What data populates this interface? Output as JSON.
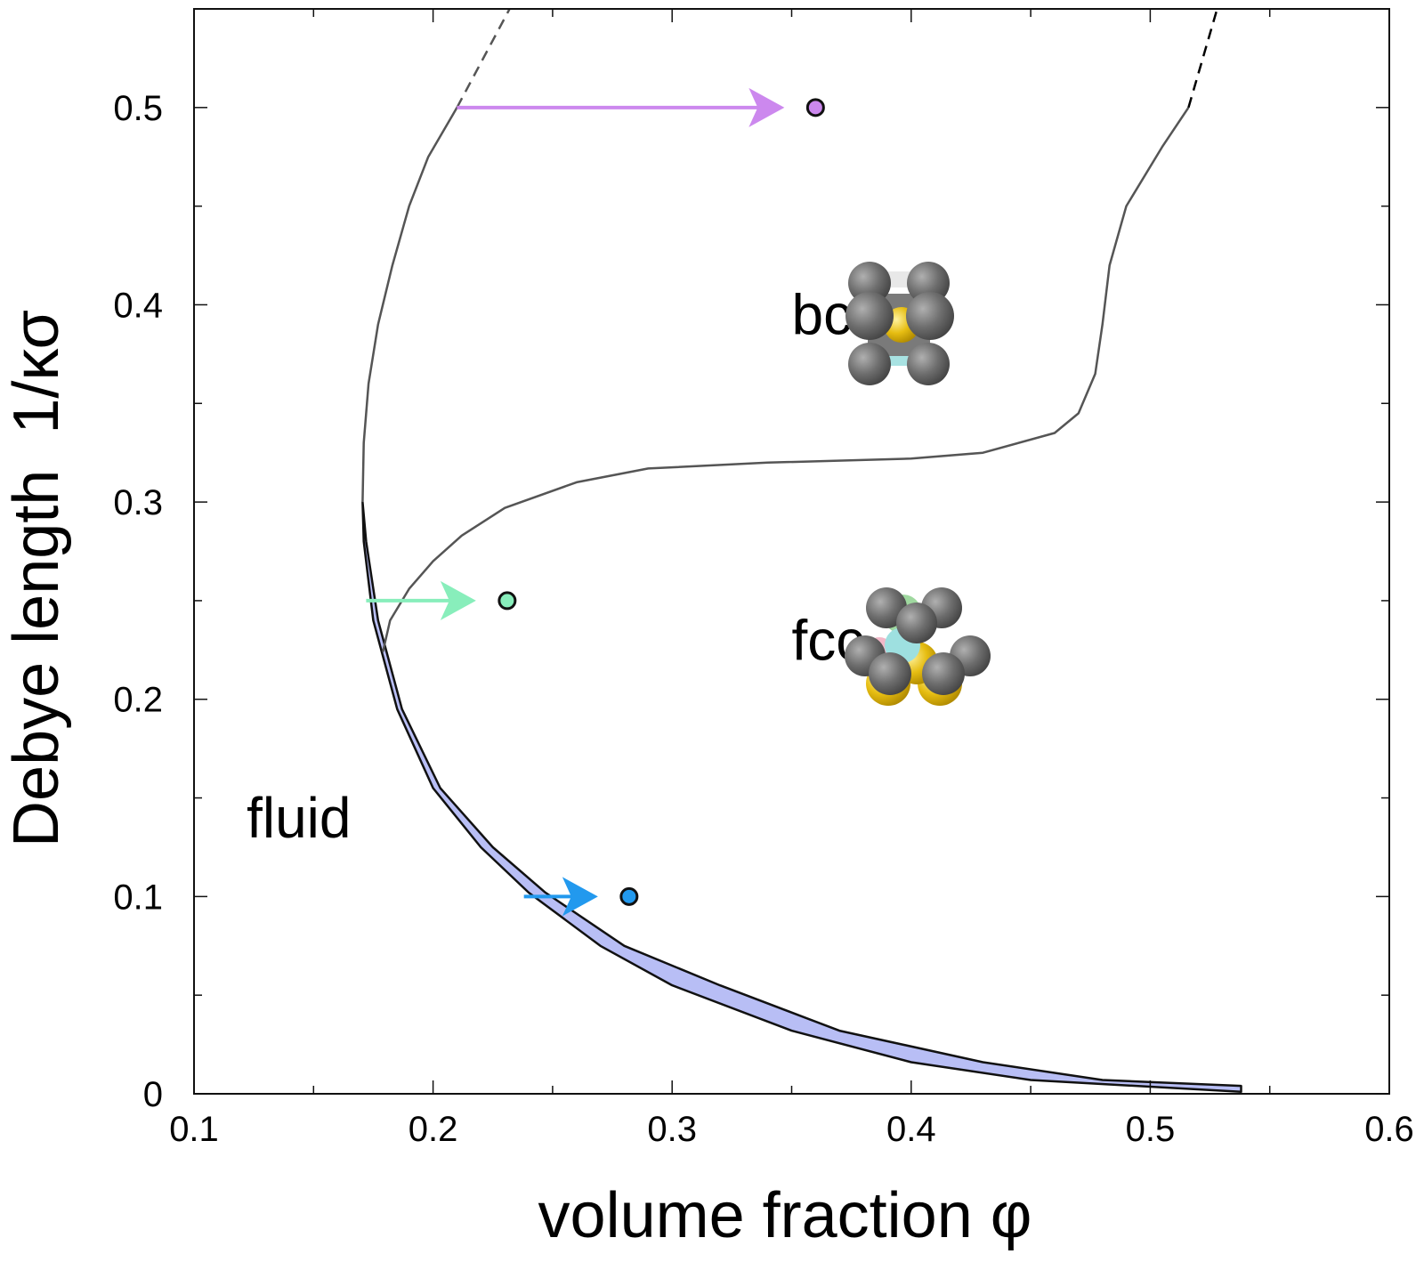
{
  "chart_data": {
    "type": "line",
    "xlabel": "volume fraction φ",
    "ylabel": "Debye length  1/κσ",
    "xlim": [
      0.1,
      0.6
    ],
    "ylim": [
      0,
      0.55
    ],
    "x_ticks": [
      {
        "value": 0.1,
        "label": "0.1"
      },
      {
        "value": 0.2,
        "label": "0.2"
      },
      {
        "value": 0.3,
        "label": "0.3"
      },
      {
        "value": 0.4,
        "label": "0.4"
      },
      {
        "value": 0.5,
        "label": "0.5"
      },
      {
        "value": 0.6,
        "label": "0.6"
      }
    ],
    "y_ticks": [
      {
        "value": 0,
        "label": "0"
      },
      {
        "value": 0.1,
        "label": "0.1"
      },
      {
        "value": 0.2,
        "label": "0.2"
      },
      {
        "value": 0.3,
        "label": "0.3"
      },
      {
        "value": 0.4,
        "label": "0.4"
      },
      {
        "value": 0.5,
        "label": "0.5"
      }
    ],
    "x_minor_ticks": [
      0.15,
      0.25,
      0.35,
      0.45,
      0.55
    ],
    "y_minor_ticks": [
      0.05,
      0.15,
      0.25,
      0.35,
      0.45
    ],
    "region_labels": [
      {
        "text": "fluid",
        "x": 0.122,
        "y": 0.13
      },
      {
        "text": "bcc",
        "x": 0.35,
        "y": 0.385
      },
      {
        "text": "fcc",
        "x": 0.35,
        "y": 0.22
      }
    ],
    "coexistence_band": {
      "color": "#b8bef5",
      "left_boundary": [
        [
          0.538,
          0.001
        ],
        [
          0.45,
          0.007
        ],
        [
          0.4,
          0.016
        ],
        [
          0.35,
          0.032
        ],
        [
          0.3,
          0.055
        ],
        [
          0.27,
          0.075
        ],
        [
          0.24,
          0.102
        ],
        [
          0.22,
          0.125
        ],
        [
          0.2,
          0.155
        ],
        [
          0.185,
          0.195
        ],
        [
          0.175,
          0.24
        ],
        [
          0.171,
          0.28
        ],
        [
          0.1705,
          0.3
        ]
      ],
      "right_boundary": [
        [
          0.1705,
          0.3
        ],
        [
          0.172,
          0.28
        ],
        [
          0.177,
          0.24
        ],
        [
          0.187,
          0.195
        ],
        [
          0.203,
          0.155
        ],
        [
          0.225,
          0.125
        ],
        [
          0.247,
          0.102
        ],
        [
          0.28,
          0.075
        ],
        [
          0.32,
          0.055
        ],
        [
          0.37,
          0.032
        ],
        [
          0.43,
          0.016
        ],
        [
          0.48,
          0.007
        ],
        [
          0.538,
          0.004
        ]
      ]
    },
    "series": [
      {
        "color": "#555555",
        "points": [
          [
            0.1705,
            0.3
          ],
          [
            0.171,
            0.33
          ],
          [
            0.173,
            0.36
          ],
          [
            0.177,
            0.39
          ],
          [
            0.183,
            0.42
          ],
          [
            0.19,
            0.45
          ],
          [
            0.198,
            0.475
          ],
          [
            0.21,
            0.5
          ]
        ]
      },
      {
        "color": "#555555",
        "style": "dashed",
        "points": [
          [
            0.21,
            0.5
          ],
          [
            0.232,
            0.55
          ]
        ]
      },
      {
        "color": "#555555",
        "points": [
          [
            0.179,
            0.224
          ],
          [
            0.182,
            0.24
          ],
          [
            0.19,
            0.256
          ],
          [
            0.2,
            0.27
          ],
          [
            0.212,
            0.283
          ],
          [
            0.23,
            0.297
          ],
          [
            0.26,
            0.31
          ],
          [
            0.29,
            0.317
          ],
          [
            0.34,
            0.32
          ],
          [
            0.4,
            0.322
          ],
          [
            0.43,
            0.325
          ],
          [
            0.46,
            0.335
          ],
          [
            0.47,
            0.345
          ],
          [
            0.477,
            0.365
          ],
          [
            0.48,
            0.39
          ],
          [
            0.483,
            0.42
          ],
          [
            0.49,
            0.45
          ],
          [
            0.505,
            0.48
          ],
          [
            0.516,
            0.5
          ]
        ]
      },
      {
        "color": "#000000",
        "style": "dashed",
        "points": [
          [
            0.516,
            0.5
          ],
          [
            0.528,
            0.55
          ]
        ]
      }
    ],
    "arrows": [
      {
        "color": "#cc88ee",
        "from": [
          0.21,
          0.5
        ],
        "to": [
          0.36,
          0.5
        ]
      },
      {
        "color": "#88eebb",
        "from": [
          0.172,
          0.25
        ],
        "to": [
          0.231,
          0.25
        ]
      },
      {
        "color": "#2299ee",
        "from": [
          0.238,
          0.1
        ],
        "to": [
          0.282,
          0.1
        ]
      }
    ],
    "points": [
      {
        "x": 0.36,
        "y": 0.5,
        "color": "#cc88ee"
      },
      {
        "x": 0.231,
        "y": 0.25,
        "color": "#88eebb"
      },
      {
        "x": 0.282,
        "y": 0.1,
        "color": "#2299ee"
      }
    ],
    "grid": false
  }
}
